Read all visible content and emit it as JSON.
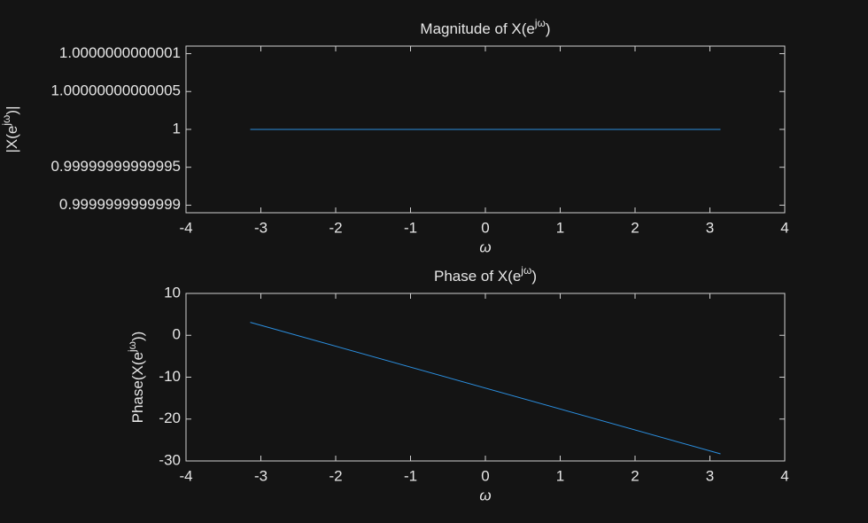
{
  "chart_data": [
    {
      "type": "line",
      "title": [
        "Magnitude of X(e",
        "jω",
        ")"
      ],
      "xlabel": "ω",
      "ylabel": [
        "|X(e",
        "jω",
        ")|"
      ],
      "x": [
        -3.1416,
        3.1416
      ],
      "values": [
        1,
        1
      ],
      "color": "#2b8fe0",
      "xlim": [
        -4,
        4
      ],
      "xticks": [
        -4,
        -3,
        -2,
        -1,
        0,
        1,
        2,
        3,
        4
      ],
      "ylim": [
        0.99999999999989,
        1.00000000000011
      ],
      "yticks": [
        {
          "value": 0.9999999999999,
          "label": "0.9999999999999"
        },
        {
          "value": 0.99999999999995,
          "label": "0.99999999999995"
        },
        1,
        {
          "value": 1.00000000000005,
          "label": "1.00000000000005"
        },
        {
          "value": 1.0000000000001,
          "label": "1.0000000000001"
        }
      ]
    },
    {
      "type": "line",
      "title": [
        "Phase of X(e",
        "jω",
        ")"
      ],
      "xlabel": "ω",
      "ylabel": [
        "Phase(X(e",
        "jω",
        "))"
      ],
      "x": [
        -3.1416,
        3.1416
      ],
      "values": [
        3.1,
        -28.3
      ],
      "color": "#2b8fe0",
      "xlim": [
        -4,
        4
      ],
      "xticks": [
        -4,
        -3,
        -2,
        -1,
        0,
        1,
        2,
        3,
        4
      ],
      "ylim": [
        -30,
        10
      ],
      "yticks": [
        -30,
        -20,
        -10,
        0,
        10
      ]
    }
  ]
}
